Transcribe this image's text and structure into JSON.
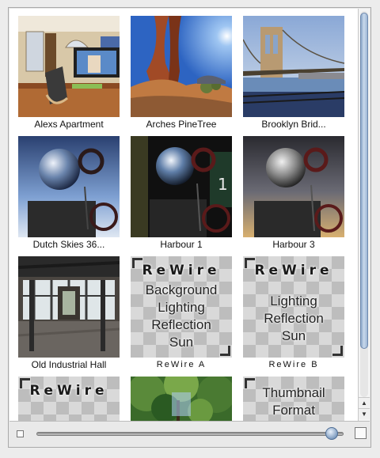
{
  "items": [
    {
      "caption": "Alexs Apartment"
    },
    {
      "caption": "Arches PineTree"
    },
    {
      "caption": "Brooklyn Brid..."
    },
    {
      "caption": "Dutch Skies 36..."
    },
    {
      "caption": "Harbour 1"
    },
    {
      "caption": "Harbour 3"
    },
    {
      "caption": "Old Industrial Hall"
    },
    {
      "caption": "ReWire A",
      "logo": "ReWire",
      "lines": [
        "Background",
        "Lighting",
        "Reflection",
        "Sun"
      ]
    },
    {
      "caption": "ReWire B",
      "logo": "ReWire",
      "lines": [
        "Lighting",
        "Reflection",
        "Sun"
      ]
    },
    {
      "logo": "ReWire"
    },
    {},
    {
      "lines": [
        "Thumbnail",
        "Format"
      ]
    }
  ],
  "zoom": {
    "level": 0.98
  },
  "scroll": {
    "position": 0.0,
    "visible_fraction": 0.87
  },
  "icons": {
    "scroll_up": "triangle-up-icon",
    "scroll_down": "triangle-down-icon",
    "zoom_out": "small-square-icon",
    "zoom_in": "large-square-icon"
  }
}
